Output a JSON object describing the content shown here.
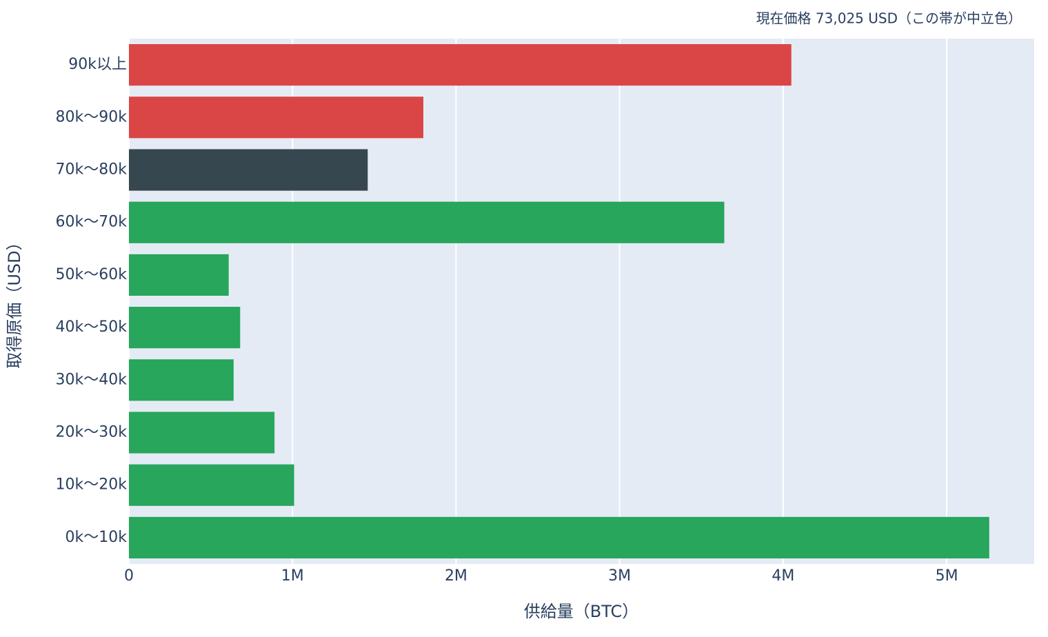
{
  "chart_data": {
    "type": "hbar",
    "annotation": "現在価格 73,025 USD（この帯が中立色）",
    "x_label": "供給量（BTC）",
    "y_label": "取得原価（USD）",
    "categories": [
      "0k〜10k",
      "10k〜20k",
      "20k〜30k",
      "30k〜40k",
      "40k〜50k",
      "50k〜60k",
      "60k〜70k",
      "70k〜80k",
      "80k〜90k",
      "90k以上"
    ],
    "values": [
      5260000,
      1010000,
      890000,
      640000,
      680000,
      610000,
      3640000,
      1460000,
      1800000,
      4050000
    ],
    "colors": [
      "#27a65c",
      "#27a65c",
      "#27a65c",
      "#27a65c",
      "#27a65c",
      "#27a65c",
      "#27a65c",
      "#36474f",
      "#d94645",
      "#d94645"
    ],
    "xlim": [
      0,
      5535000
    ],
    "xticks": [
      0,
      {
        "value": 1000000,
        "label": "1M"
      },
      {
        "value": 2000000,
        "label": "2M"
      },
      {
        "value": 3000000,
        "label": "3M"
      },
      {
        "value": 4000000,
        "label": "4M"
      },
      {
        "value": 5000000,
        "label": "5M"
      }
    ],
    "grid": true,
    "plot_background": "#e5ebf5"
  }
}
